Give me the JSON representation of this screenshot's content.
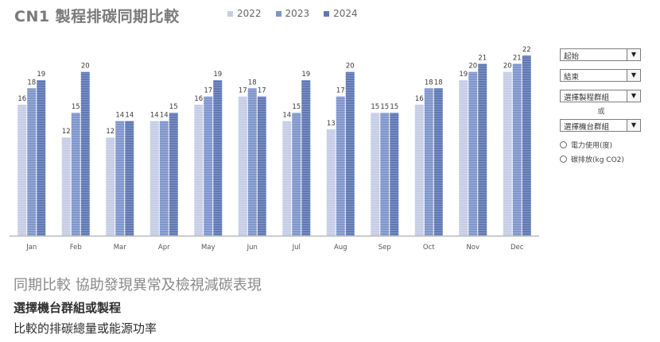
{
  "title": "CN1 製程排碳同期比較",
  "chart_data": {
    "type": "bar",
    "categories": [
      "Jan",
      "Feb",
      "Mar",
      "Apr",
      "May",
      "Jun",
      "Jul",
      "Aug",
      "Sep",
      "Oct",
      "Nov",
      "Dec"
    ],
    "series": [
      {
        "name": "2022",
        "color": "#c5cde6",
        "values": [
          16,
          12,
          12,
          14,
          16,
          17,
          14,
          13,
          15,
          16,
          19,
          20
        ]
      },
      {
        "name": "2023",
        "color": "#7f96cc",
        "values": [
          18,
          15,
          14,
          14,
          17,
          18,
          15,
          17,
          15,
          18,
          20,
          21
        ]
      },
      {
        "name": "2024",
        "color": "#5f78b4",
        "values": [
          19,
          20,
          14,
          15,
          19,
          17,
          19,
          20,
          15,
          18,
          21,
          22
        ]
      }
    ],
    "ylim": [
      0,
      22
    ],
    "grid": false,
    "legend": "top"
  },
  "controls": {
    "start": "起始",
    "end": "結束",
    "process_group": "選擇製程群組",
    "or": "或",
    "machine_group": "選擇機台群組",
    "radio_power": "電力使用(度)",
    "radio_carbon": "碳排放(kg CO2)"
  },
  "footer": {
    "heading": "同期比較 協助發現異常及檢視減碳表現",
    "line1": "選擇機台群組或製程",
    "line2": "比較的排碳總量或能源功率"
  }
}
